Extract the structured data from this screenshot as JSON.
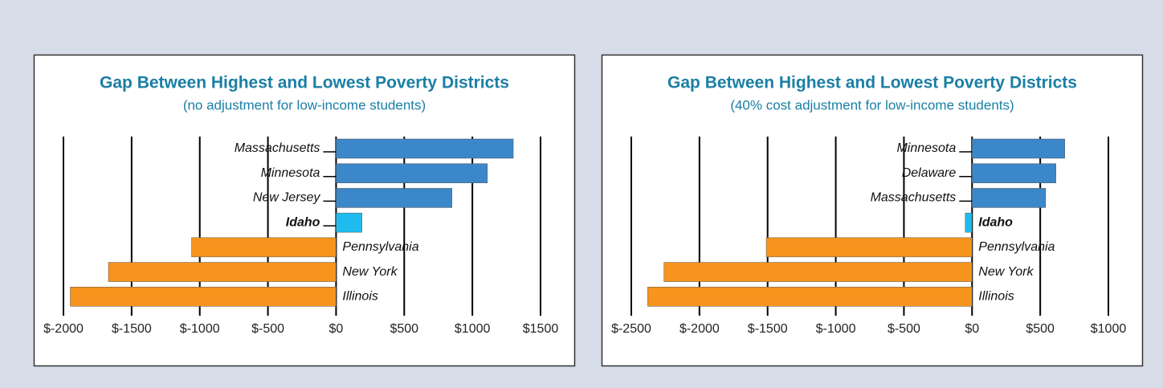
{
  "chart_data": [
    {
      "type": "bar",
      "orientation": "horizontal",
      "title": "Gap Between Highest and Lowest Poverty Districts",
      "subtitle": "(no adjustment for low-income students)",
      "categories": [
        "Massachusetts",
        "Minnesota",
        "New Jersey",
        "Idaho",
        "Pennsylvania",
        "New York",
        "Illinois"
      ],
      "values": [
        1300,
        1110,
        850,
        190,
        -1060,
        -1670,
        -1950
      ],
      "colors": [
        "#3b87c9",
        "#3b87c9",
        "#3b87c9",
        "#1fbbee",
        "#f7941d",
        "#f7941d",
        "#f7941d"
      ],
      "highlight": "Idaho",
      "xlim": [
        -2000,
        1500
      ],
      "xticks": [
        {
          "value": -2000,
          "label": "$-2000"
        },
        {
          "value": -1500,
          "label": "$-1500"
        },
        {
          "value": -1000,
          "label": "$-1000"
        },
        {
          "value": -500,
          "label": "$-500"
        },
        {
          "value": 0,
          "label": "$0"
        },
        {
          "value": 500,
          "label": "$500"
        },
        {
          "value": 1000,
          "label": "$1000"
        },
        {
          "value": 1500,
          "label": "$1500"
        }
      ],
      "grid": true
    },
    {
      "type": "bar",
      "orientation": "horizontal",
      "title": "Gap Between Highest and Lowest Poverty Districts",
      "subtitle": "(40% cost adjustment for low-income students)",
      "categories": [
        "Minnesota",
        "Delaware",
        "Massachusetts",
        "Idaho",
        "Pennsylvania",
        "New York",
        "Illinois"
      ],
      "values": [
        680,
        615,
        540,
        -50,
        -1510,
        -2260,
        -2380
      ],
      "colors": [
        "#3b87c9",
        "#3b87c9",
        "#3b87c9",
        "#1fbbee",
        "#f7941d",
        "#f7941d",
        "#f7941d"
      ],
      "highlight": "Idaho",
      "xlim": [
        -2500,
        1000
      ],
      "xticks": [
        {
          "value": -2500,
          "label": "$-2500"
        },
        {
          "value": -2000,
          "label": "$-2000"
        },
        {
          "value": -1500,
          "label": "$-1500"
        },
        {
          "value": -1000,
          "label": "$-1000"
        },
        {
          "value": -500,
          "label": "$-500"
        },
        {
          "value": 0,
          "label": "$0"
        },
        {
          "value": 500,
          "label": "$500"
        },
        {
          "value": 1000,
          "label": "$1000"
        }
      ],
      "grid": true
    }
  ]
}
